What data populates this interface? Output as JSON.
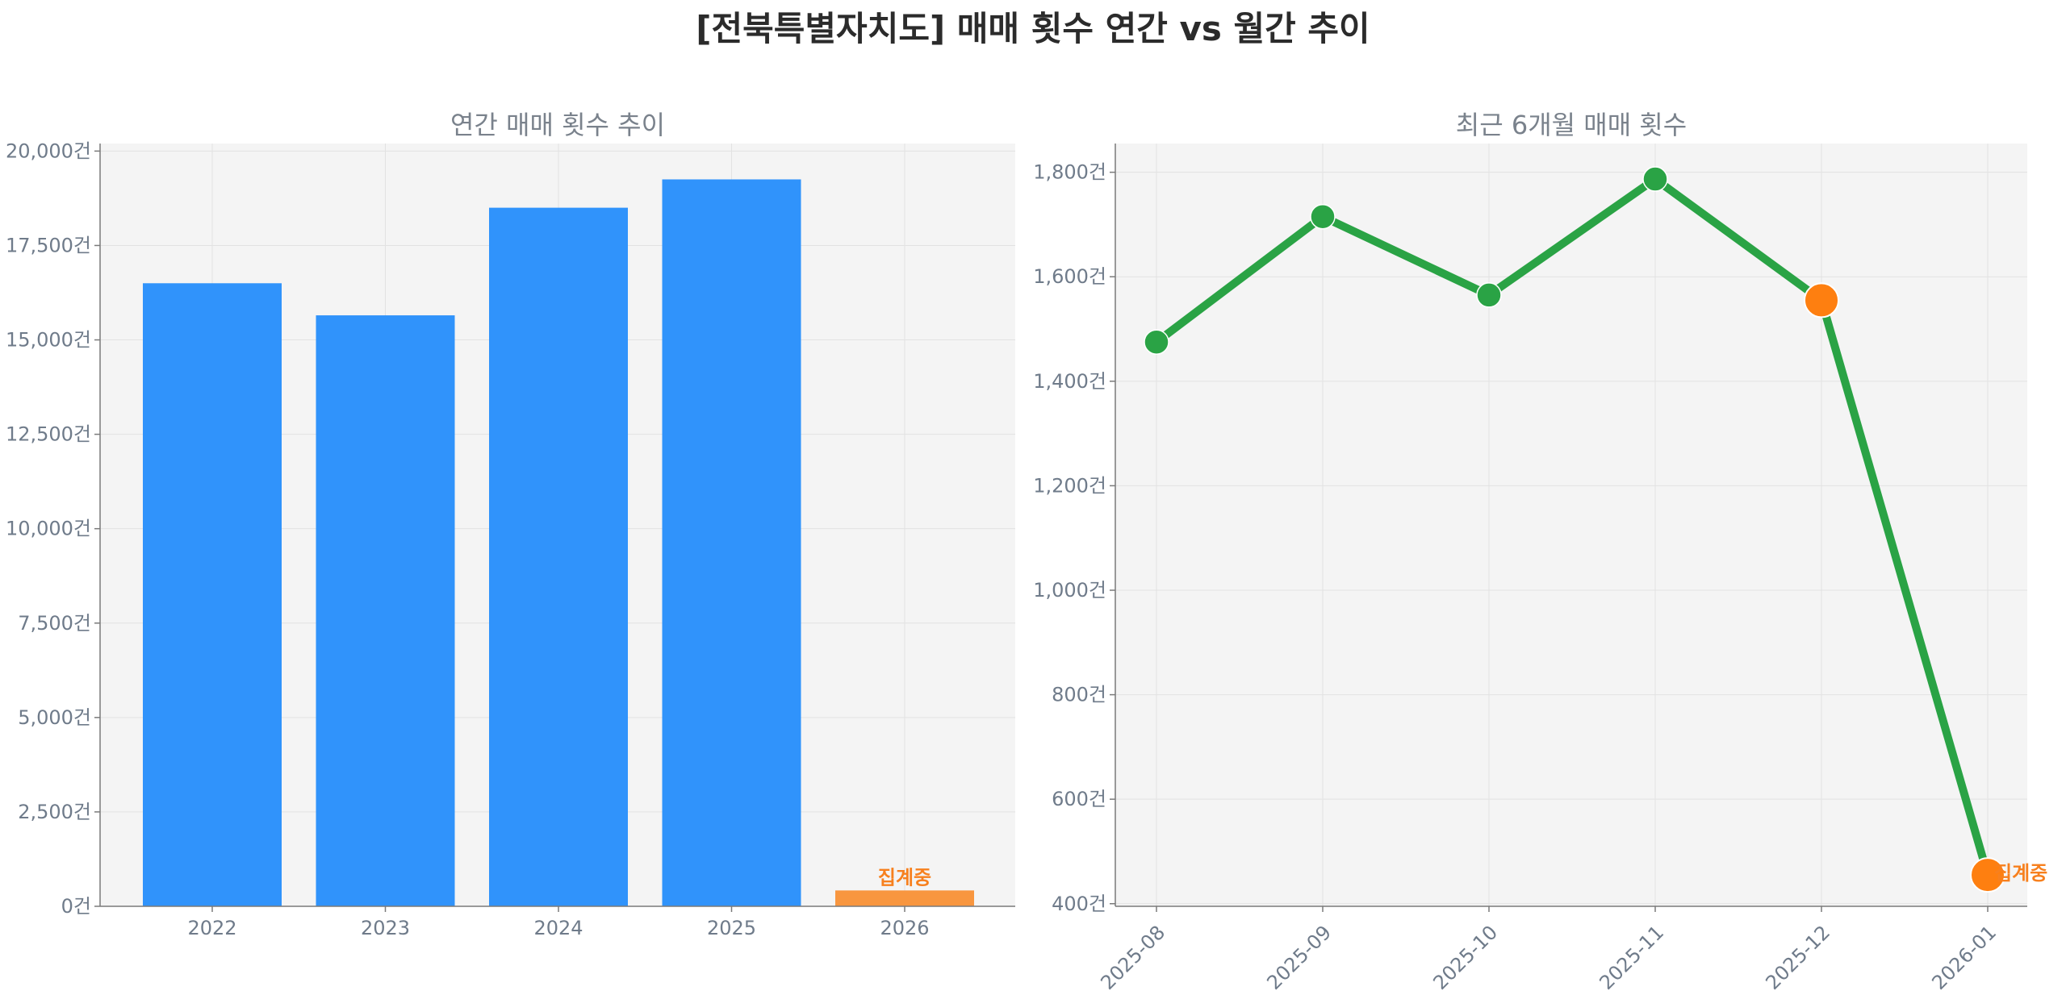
{
  "main_title": "[전북특별자치도] 매매 횟수 연간 vs 월간 추이",
  "colors": {
    "bar_main": "#3093fb",
    "bar_partial": "#f8963f",
    "line": "#2aa345",
    "marker_partial": "#fe7f10",
    "annotation": "#f7801e"
  },
  "chart_data": [
    {
      "type": "bar",
      "title": "연간 매매 횟수 추이",
      "categories": [
        "2022",
        "2023",
        "2024",
        "2025",
        "2026"
      ],
      "values": [
        16500,
        15650,
        18500,
        19250,
        420
      ],
      "partial_index": 4,
      "annotation": "집계중",
      "ylim": [
        0,
        20200
      ],
      "yticks": [
        0,
        2500,
        5000,
        7500,
        10000,
        12500,
        15000,
        17500,
        20000
      ],
      "ytick_labels": [
        "0건",
        "2,500건",
        "5,000건",
        "7,500건",
        "10,000건",
        "12,500건",
        "15,000건",
        "17,500건",
        "20,000건"
      ],
      "grid": true
    },
    {
      "type": "line",
      "title": "최근 6개월 매매 횟수",
      "categories": [
        "2025-08",
        "2025-09",
        "2025-10",
        "2025-11",
        "2025-12",
        "2026-01"
      ],
      "values": [
        1475,
        1715,
        1565,
        1787,
        1555,
        455
      ],
      "partial_indices": [
        4,
        5
      ],
      "annotation": "집계중",
      "ylim": [
        395,
        1855
      ],
      "yticks": [
        400,
        600,
        800,
        1000,
        1200,
        1400,
        1600,
        1800
      ],
      "ytick_labels": [
        "400건",
        "600건",
        "800건",
        "1,000건",
        "1,200건",
        "1,400건",
        "1,600건",
        "1,800건"
      ],
      "grid": true
    }
  ]
}
